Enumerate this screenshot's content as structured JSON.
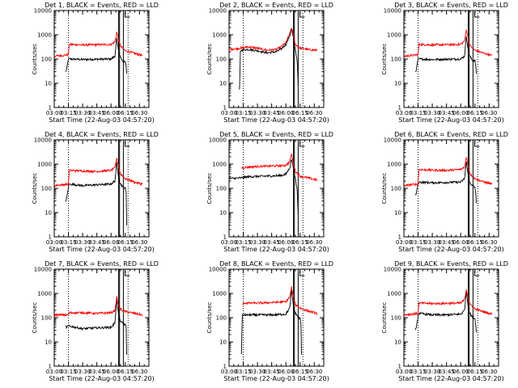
{
  "figure": {
    "background": "#ffffff",
    "axis_color": "#000000",
    "events_color": "#000000",
    "lld_color": "#ff0000"
  },
  "chart_data": [
    {
      "type": "line",
      "title": "Det 1, BLACK = Events, RED = LLD",
      "xlabel": "Start Time (22-Aug-03 04:57:20)",
      "ylabel": "Counts/sec",
      "yscale": "log",
      "ylim": [
        1,
        10000
      ],
      "yticks": [
        "1",
        "10",
        "100",
        "1000",
        "10000"
      ],
      "xlim": [
        300,
        400
      ],
      "xticks": [
        "03:00",
        "03:15",
        "03:30",
        "03:45",
        "06:00",
        "06:15",
        "06:30"
      ],
      "xtick_values": [
        300,
        315,
        330,
        345,
        360,
        375,
        390
      ],
      "dotted_lines": [
        315,
        378
      ],
      "vertical_lines": [
        368,
        369,
        373
      ],
      "series": [
        {
          "name": "Events",
          "color": "#000000",
          "x": [
            312,
            313,
            315,
            316,
            330,
            345,
            360,
            364,
            366,
            368,
            369,
            372,
            375,
            376,
            376.5
          ],
          "y": [
            30,
            35,
            100,
            100,
            95,
            98,
            100,
            130,
            700,
            200,
            150,
            80,
            80,
            50,
            25
          ]
        },
        {
          "name": "LLD",
          "color": "#ff0000",
          "x": [
            300,
            315,
            316,
            330,
            345,
            360,
            364,
            366,
            368,
            370,
            375,
            385,
            393
          ],
          "y": [
            130,
            150,
            400,
            380,
            390,
            400,
            500,
            1300,
            600,
            350,
            220,
            170,
            140
          ]
        }
      ]
    },
    {
      "type": "line",
      "title": "Det 2, BLACK = Events, RED = LLD",
      "xlabel": "Start Time (22-Aug-03 04:57:20)",
      "ylabel": "Counts/sec",
      "yscale": "log",
      "ylim": [
        1,
        10000
      ],
      "yticks": [
        "1",
        "10",
        "100",
        "1000",
        "10000"
      ],
      "xlim": [
        300,
        400
      ],
      "xticks": [
        "03:00",
        "03:15",
        "03:30",
        "03:45",
        "06:00",
        "06:15",
        "06:30"
      ],
      "xtick_values": [
        300,
        315,
        330,
        345,
        360,
        375,
        390
      ],
      "dotted_lines": [
        315,
        378
      ],
      "vertical_lines": [
        368,
        369,
        373
      ],
      "series": [
        {
          "name": "Events",
          "color": "#000000",
          "x": [
            311,
            312,
            313,
            320,
            330,
            340,
            350,
            355,
            360,
            364,
            366,
            368,
            370,
            372,
            373
          ],
          "y": [
            5,
            200,
            230,
            250,
            220,
            180,
            200,
            260,
            400,
            900,
            1700,
            700,
            250,
            80,
            8
          ]
        },
        {
          "name": "LLD",
          "color": "#ff0000",
          "x": [
            300,
            313,
            320,
            330,
            340,
            350,
            355,
            360,
            364,
            366,
            368,
            370,
            375,
            385,
            393
          ],
          "y": [
            250,
            280,
            320,
            280,
            230,
            250,
            320,
            480,
            1100,
            2000,
            900,
            400,
            280,
            240,
            230
          ]
        }
      ]
    },
    {
      "type": "line",
      "title": "Det 3, BLACK = Events, RED = LLD",
      "xlabel": "Start Time (22-Aug-03 04:57:20)",
      "ylabel": "Counts/sec",
      "yscale": "log",
      "ylim": [
        1,
        10000
      ],
      "yticks": [
        "1",
        "10",
        "100",
        "1000",
        "10000"
      ],
      "xlim": [
        300,
        400
      ],
      "xticks": [
        "03:00",
        "03:15",
        "03:30",
        "03:45",
        "06:00",
        "06:15",
        "06:30"
      ],
      "xtick_values": [
        300,
        315,
        330,
        345,
        360,
        375,
        390
      ],
      "dotted_lines": [
        315,
        378
      ],
      "vertical_lines": [
        368,
        369,
        373
      ],
      "series": [
        {
          "name": "Events",
          "color": "#000000",
          "x": [
            312,
            313,
            315,
            316,
            330,
            345,
            360,
            364,
            366,
            368,
            369,
            372,
            375,
            376,
            376.5
          ],
          "y": [
            30,
            35,
            100,
            100,
            95,
            98,
            100,
            130,
            900,
            220,
            150,
            90,
            85,
            50,
            25
          ]
        },
        {
          "name": "LLD",
          "color": "#ff0000",
          "x": [
            300,
            315,
            316,
            330,
            345,
            360,
            364,
            366,
            368,
            370,
            375,
            385,
            393
          ],
          "y": [
            130,
            150,
            400,
            380,
            390,
            400,
            550,
            1700,
            650,
            350,
            230,
            170,
            140
          ]
        }
      ]
    },
    {
      "type": "line",
      "title": "Det 4, BLACK = Events, RED = LLD",
      "xlabel": "Start Time (22-Aug-03 04:57:20)",
      "ylabel": "Counts/sec",
      "yscale": "log",
      "ylim": [
        1,
        10000
      ],
      "yticks": [
        "1",
        "10",
        "100",
        "1000",
        "10000"
      ],
      "xlim": [
        300,
        400
      ],
      "xticks": [
        "03:00",
        "03:15",
        "03:30",
        "03:45",
        "06:00",
        "06:15",
        "06:30"
      ],
      "xtick_values": [
        300,
        315,
        330,
        345,
        360,
        375,
        390
      ],
      "dotted_lines": [
        315,
        378
      ],
      "vertical_lines": [
        368,
        369,
        373
      ],
      "series": [
        {
          "name": "Events",
          "color": "#000000",
          "x": [
            312,
            313,
            315,
            316,
            330,
            345,
            360,
            364,
            366,
            368,
            369,
            372,
            375,
            376,
            376.5
          ],
          "y": [
            30,
            35,
            120,
            150,
            130,
            140,
            150,
            200,
            1100,
            300,
            180,
            120,
            100,
            60,
            3
          ]
        },
        {
          "name": "LLD",
          "color": "#ff0000",
          "x": [
            300,
            315,
            316,
            330,
            345,
            360,
            364,
            366,
            368,
            370,
            375,
            385,
            393
          ],
          "y": [
            130,
            150,
            550,
            520,
            500,
            550,
            700,
            1800,
            800,
            400,
            250,
            180,
            150
          ]
        }
      ]
    },
    {
      "type": "line",
      "title": "Det 5, BLACK = Events, RED = LLD",
      "xlabel": "Start Time (22-Aug-03 04:57:20)",
      "ylabel": "Counts/sec",
      "yscale": "log",
      "ylim": [
        1,
        10000
      ],
      "yticks": [
        "1",
        "10",
        "100",
        "1000",
        "10000"
      ],
      "xlim": [
        300,
        400
      ],
      "xticks": [
        "03:00",
        "03:15",
        "03:30",
        "03:45",
        "06:00",
        "06:15",
        "06:30"
      ],
      "xtick_values": [
        300,
        315,
        330,
        345,
        360,
        375,
        390
      ],
      "dotted_lines": [
        315,
        378
      ],
      "vertical_lines": [
        368,
        369,
        373
      ],
      "series": [
        {
          "name": "Events",
          "color": "#000000",
          "x": [
            300,
            313,
            320,
            330,
            340,
            350,
            355,
            360,
            364,
            366,
            368,
            370,
            372,
            373
          ],
          "y": [
            250,
            270,
            300,
            310,
            320,
            330,
            340,
            380,
            700,
            1600,
            700,
            250,
            80,
            8
          ]
        },
        {
          "name": "LLD",
          "color": "#ff0000",
          "x": [
            313,
            320,
            330,
            340,
            350,
            355,
            360,
            364,
            366,
            368,
            370,
            375,
            385,
            393
          ],
          "y": [
            700,
            750,
            800,
            820,
            840,
            860,
            900,
            1200,
            2600,
            1000,
            500,
            320,
            260,
            220
          ]
        }
      ]
    },
    {
      "type": "line",
      "title": "Det 6, BLACK = Events, RED = LLD",
      "xlabel": "Start Time (22-Aug-03 04:57:20)",
      "ylabel": "Counts/sec",
      "yscale": "log",
      "ylim": [
        1,
        10000
      ],
      "yticks": [
        "1",
        "10",
        "100",
        "1000",
        "10000"
      ],
      "xlim": [
        300,
        400
      ],
      "xticks": [
        "03:00",
        "03:15",
        "03:30",
        "03:45",
        "06:00",
        "06:15",
        "06:30"
      ],
      "xtick_values": [
        300,
        315,
        330,
        345,
        360,
        375,
        390
      ],
      "dotted_lines": [
        315,
        378
      ],
      "vertical_lines": [
        368,
        369,
        373
      ],
      "series": [
        {
          "name": "Events",
          "color": "#000000",
          "x": [
            312,
            313,
            315,
            316,
            330,
            345,
            360,
            364,
            366,
            368,
            369,
            372,
            375,
            376,
            376.5
          ],
          "y": [
            50,
            60,
            150,
            180,
            170,
            175,
            180,
            250,
            1200,
            350,
            200,
            130,
            110,
            60,
            25
          ]
        },
        {
          "name": "LLD",
          "color": "#ff0000",
          "x": [
            300,
            315,
            316,
            330,
            345,
            360,
            364,
            366,
            368,
            370,
            375,
            385,
            393
          ],
          "y": [
            130,
            150,
            600,
            560,
            550,
            600,
            750,
            1900,
            800,
            400,
            250,
            180,
            150
          ]
        }
      ]
    },
    {
      "type": "line",
      "title": "Det 7, BLACK = Events, RED = LLD",
      "xlabel": "Start Time (22-Aug-03 04:57:20)",
      "ylabel": "Counts/sec",
      "yscale": "log",
      "ylim": [
        1,
        10000
      ],
      "yticks": [
        "1",
        "10",
        "100",
        "1000",
        "10000"
      ],
      "xlim": [
        300,
        400
      ],
      "xticks": [
        "03:00",
        "03:15",
        "03:30",
        "03:45",
        "06:00",
        "06:15",
        "06:30"
      ],
      "xtick_values": [
        300,
        315,
        330,
        345,
        360,
        375,
        390
      ],
      "dotted_lines": [
        315,
        378
      ],
      "vertical_lines": [
        368,
        369,
        373
      ],
      "series": [
        {
          "name": "Events",
          "color": "#000000",
          "x": [
            312,
            313,
            315,
            316,
            330,
            345,
            360,
            364,
            366,
            368,
            369,
            372,
            375,
            376,
            376.5
          ],
          "y": [
            45,
            40,
            45,
            45,
            35,
            38,
            40,
            60,
            600,
            120,
            80,
            60,
            50,
            40,
            3
          ]
        },
        {
          "name": "LLD",
          "color": "#ff0000",
          "x": [
            300,
            315,
            316,
            330,
            345,
            360,
            364,
            366,
            368,
            370,
            375,
            385,
            393
          ],
          "y": [
            130,
            130,
            160,
            160,
            150,
            160,
            200,
            700,
            300,
            220,
            180,
            150,
            130
          ]
        }
      ]
    },
    {
      "type": "line",
      "title": "Det 8, BLACK = Events, RED = LLD",
      "xlabel": "Start Time (22-Aug-03 04:57:20)",
      "ylabel": "Counts/sec",
      "yscale": "log",
      "ylim": [
        1,
        10000
      ],
      "yticks": [
        "1",
        "10",
        "100",
        "1000",
        "10000"
      ],
      "xlim": [
        300,
        400
      ],
      "xticks": [
        "03:00",
        "03:15",
        "03:30",
        "03:45",
        "06:00",
        "06:15",
        "06:30"
      ],
      "xtick_values": [
        300,
        315,
        330,
        345,
        360,
        375,
        390
      ],
      "dotted_lines": [
        315,
        378
      ],
      "vertical_lines": [
        368,
        369,
        373
      ],
      "series": [
        {
          "name": "Events",
          "color": "#000000",
          "x": [
            313,
            314,
            315,
            316,
            330,
            345,
            360,
            364,
            366,
            368,
            369,
            372,
            375,
            376,
            376.5
          ],
          "y": [
            3,
            120,
            140,
            130,
            130,
            130,
            140,
            250,
            1300,
            300,
            180,
            120,
            90,
            50,
            3
          ]
        },
        {
          "name": "LLD",
          "color": "#ff0000",
          "x": [
            314,
            315,
            316,
            330,
            345,
            360,
            364,
            366,
            368,
            370,
            375,
            385,
            393
          ],
          "y": [
            350,
            380,
            400,
            400,
            420,
            450,
            700,
            1800,
            700,
            350,
            250,
            180,
            150
          ]
        }
      ]
    },
    {
      "type": "line",
      "title": "Det 9, BLACK = Events, RED = LLD",
      "xlabel": "Start Time (22-Aug-03 04:57:20)",
      "ylabel": "Counts/sec",
      "yscale": "log",
      "ylim": [
        1,
        10000
      ],
      "yticks": [
        "1",
        "10",
        "100",
        "1000",
        "10000"
      ],
      "xlim": [
        300,
        400
      ],
      "xticks": [
        "03:00",
        "03:15",
        "03:30",
        "03:45",
        "06:00",
        "06:15",
        "06:30"
      ],
      "xtick_values": [
        300,
        315,
        330,
        345,
        360,
        375,
        390
      ],
      "dotted_lines": [
        315,
        378
      ],
      "vertical_lines": [
        368,
        369,
        373
      ],
      "series": [
        {
          "name": "Events",
          "color": "#000000",
          "x": [
            312,
            313,
            315,
            316,
            330,
            345,
            360,
            364,
            366,
            368,
            369,
            372,
            375,
            376,
            376.5
          ],
          "y": [
            30,
            35,
            120,
            150,
            130,
            130,
            140,
            200,
            1200,
            280,
            170,
            110,
            90,
            50,
            25
          ]
        },
        {
          "name": "LLD",
          "color": "#ff0000",
          "x": [
            300,
            315,
            316,
            330,
            345,
            360,
            364,
            366,
            368,
            370,
            375,
            385,
            393
          ],
          "y": [
            130,
            150,
            400,
            380,
            390,
            400,
            550,
            1500,
            650,
            350,
            230,
            170,
            140
          ]
        }
      ]
    }
  ]
}
